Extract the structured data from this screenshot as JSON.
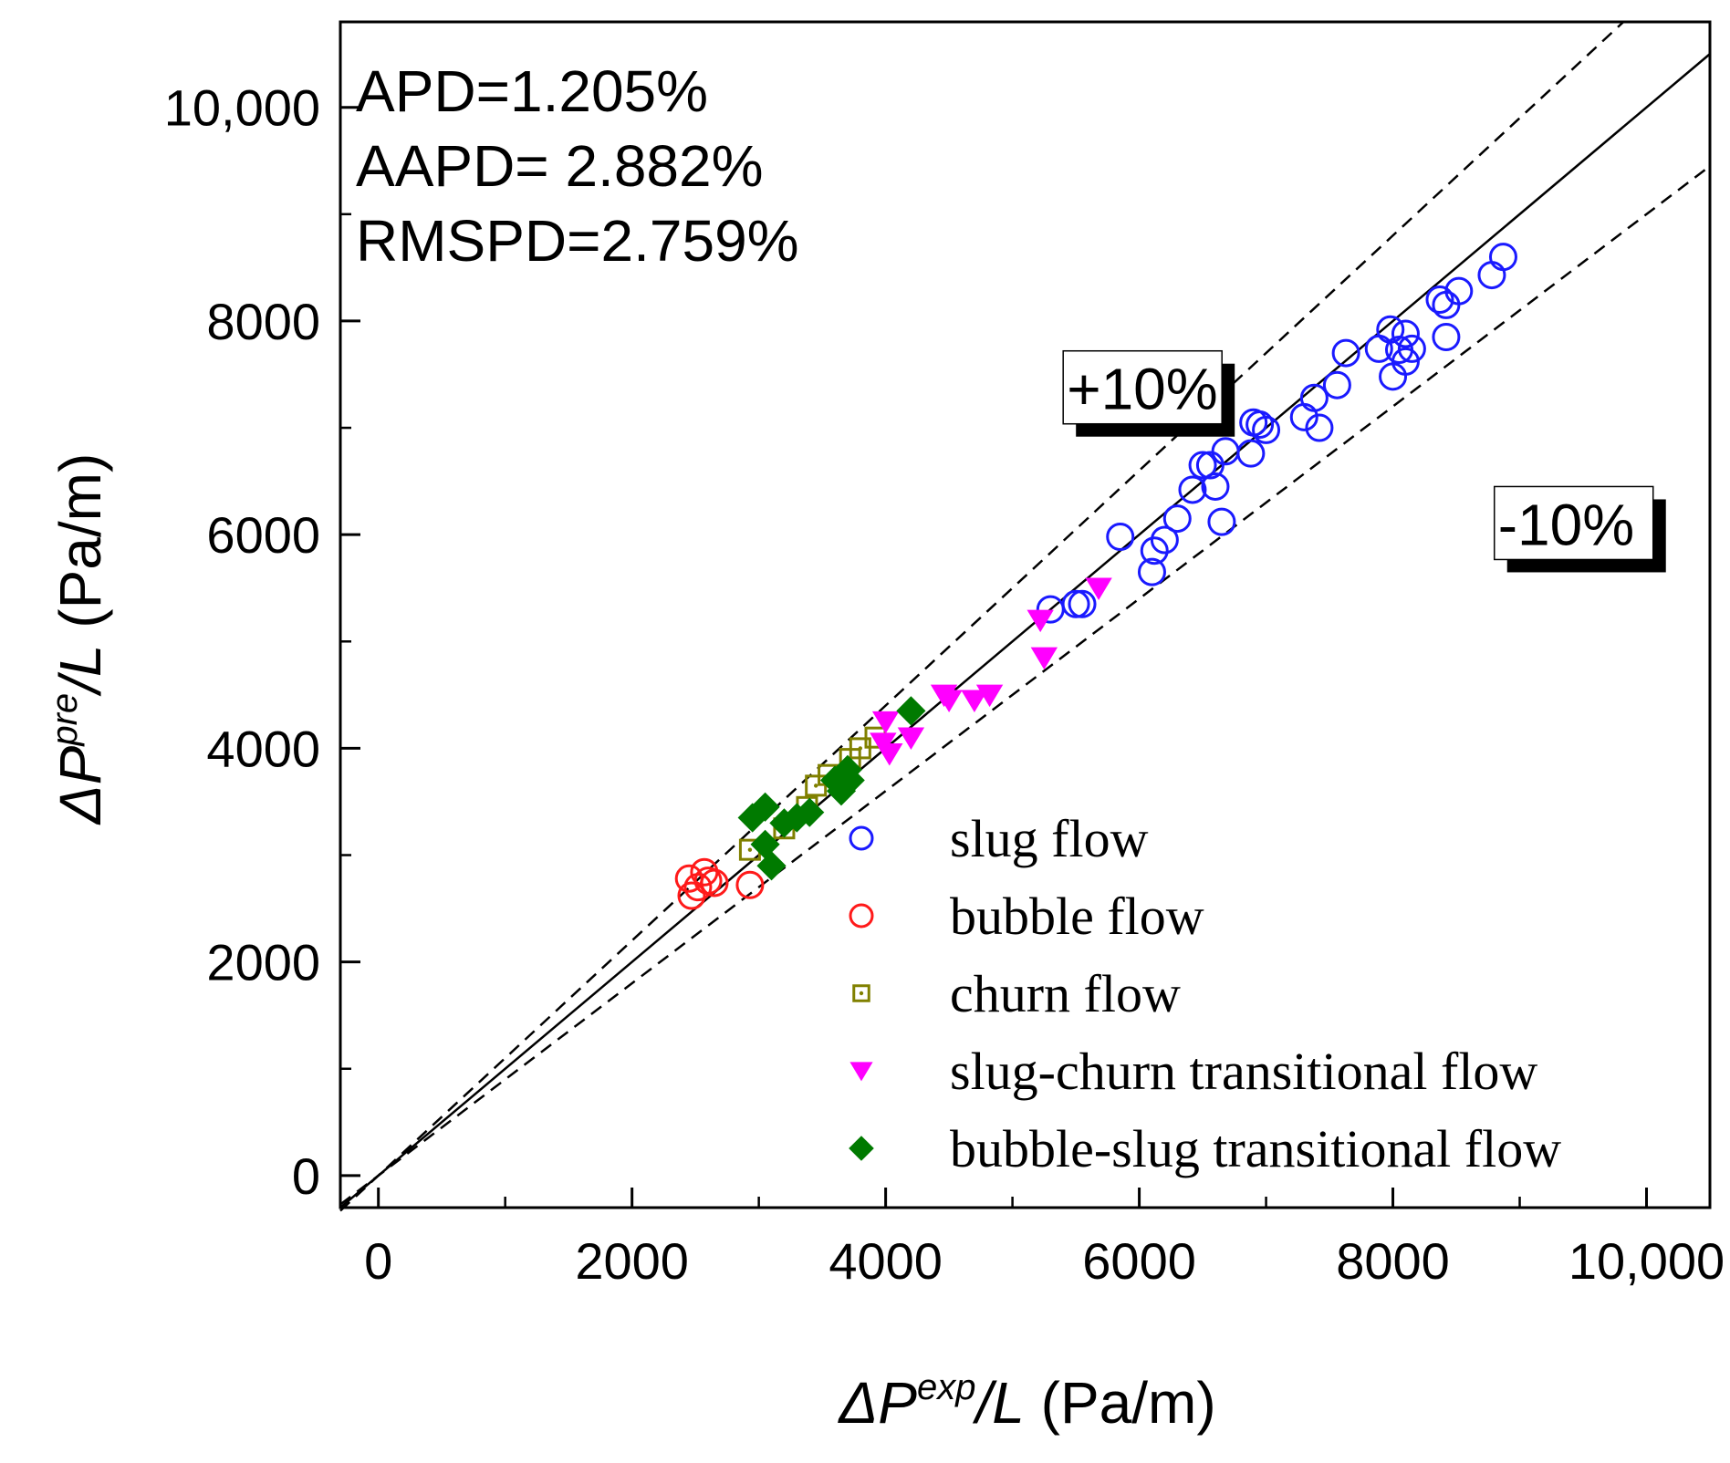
{
  "chart_data": {
    "type": "scatter",
    "title": "",
    "xlabel": {
      "prefix": "ΔP",
      "sup": "exp",
      "suffix": "/L",
      "unit": " (Pa/m)"
    },
    "ylabel": {
      "prefix": "ΔP",
      "sup": "pre",
      "suffix": "/L",
      "unit": " (Pa/m)"
    },
    "xlim": [
      -300,
      10500
    ],
    "ylim": [
      -300,
      10800
    ],
    "x_ticks": [
      0,
      2000,
      4000,
      6000,
      8000,
      10000
    ],
    "x_tick_labels": [
      "0",
      "2000",
      "4000",
      "6000",
      "8000",
      "10,000"
    ],
    "y_ticks": [
      0,
      2000,
      4000,
      6000,
      8000,
      10000
    ],
    "y_tick_labels": [
      "0",
      "2000",
      "4000",
      "6000",
      "8000",
      "10,000"
    ],
    "grid": false,
    "legend_position": "bottom-right",
    "stats": [
      "APD=1.205%",
      "AAPD= 2.882%",
      "RMSPD=2.759%"
    ],
    "reference_lines": [
      {
        "name": "parity",
        "slope": 1.0,
        "style": "solid",
        "color": "#000000"
      },
      {
        "name": "plus-10",
        "slope": 1.1,
        "style": "dashed",
        "color": "#000000",
        "label": "+10%",
        "label_at": [
          5400,
          7720
        ]
      },
      {
        "name": "minus-10",
        "slope": 0.9,
        "style": "dashed",
        "color": "#000000",
        "label": "-10%",
        "label_at": [
          8800,
          6450
        ]
      }
    ],
    "series": [
      {
        "name": "slug flow",
        "marker": "open-circle",
        "color": "#1a1aff",
        "points": [
          [
            5300,
            5300
          ],
          [
            5500,
            5350
          ],
          [
            5550,
            5350
          ],
          [
            5850,
            5980
          ],
          [
            6100,
            5650
          ],
          [
            6120,
            5850
          ],
          [
            6200,
            5950
          ],
          [
            6300,
            6150
          ],
          [
            6420,
            6420
          ],
          [
            6500,
            6650
          ],
          [
            6560,
            6650
          ],
          [
            6600,
            6450
          ],
          [
            6680,
            6780
          ],
          [
            6650,
            6120
          ],
          [
            6880,
            6760
          ],
          [
            6900,
            7050
          ],
          [
            6950,
            7030
          ],
          [
            7000,
            6980
          ],
          [
            7300,
            7100
          ],
          [
            7380,
            7280
          ],
          [
            7420,
            7000
          ],
          [
            7560,
            7400
          ],
          [
            7630,
            7700
          ],
          [
            7890,
            7740
          ],
          [
            7980,
            7920
          ],
          [
            8000,
            7480
          ],
          [
            8050,
            7730
          ],
          [
            8100,
            7880
          ],
          [
            8100,
            7620
          ],
          [
            8150,
            7740
          ],
          [
            8420,
            7850
          ],
          [
            8370,
            8200
          ],
          [
            8420,
            8150
          ],
          [
            8520,
            8280
          ],
          [
            8780,
            8430
          ],
          [
            8870,
            8600
          ]
        ]
      },
      {
        "name": "bubble flow",
        "marker": "open-circle",
        "color": "#ff1a1a",
        "points": [
          [
            2450,
            2780
          ],
          [
            2470,
            2620
          ],
          [
            2520,
            2700
          ],
          [
            2570,
            2840
          ],
          [
            2600,
            2760
          ],
          [
            2650,
            2740
          ],
          [
            2930,
            2720
          ]
        ]
      },
      {
        "name": "churn flow",
        "marker": "open-square-dot",
        "color": "#808000",
        "points": [
          [
            2930,
            3050
          ],
          [
            3200,
            3250
          ],
          [
            3380,
            3450
          ],
          [
            3450,
            3650
          ],
          [
            3550,
            3750
          ],
          [
            3720,
            3900
          ],
          [
            3800,
            4000
          ],
          [
            3920,
            4100
          ]
        ]
      },
      {
        "name": "slug-churn transitional flow",
        "marker": "filled-triangle-down",
        "color": "#ff00ff",
        "points": [
          [
            3980,
            4050
          ],
          [
            4000,
            4250
          ],
          [
            4030,
            3950
          ],
          [
            4200,
            4100
          ],
          [
            4460,
            4500
          ],
          [
            4500,
            4450
          ],
          [
            4700,
            4450
          ],
          [
            4820,
            4500
          ],
          [
            5220,
            5200
          ],
          [
            5250,
            4850
          ],
          [
            5680,
            5500
          ]
        ]
      },
      {
        "name": "bubble-slug transitional flow",
        "marker": "filled-diamond",
        "color": "#007a00",
        "points": [
          [
            2950,
            3350
          ],
          [
            3050,
            3450
          ],
          [
            3050,
            3100
          ],
          [
            3100,
            2900
          ],
          [
            3200,
            3300
          ],
          [
            3300,
            3350
          ],
          [
            3400,
            3400
          ],
          [
            3600,
            3700
          ],
          [
            3650,
            3600
          ],
          [
            3700,
            3800
          ],
          [
            3720,
            3700
          ],
          [
            4200,
            4350
          ]
        ]
      }
    ]
  }
}
